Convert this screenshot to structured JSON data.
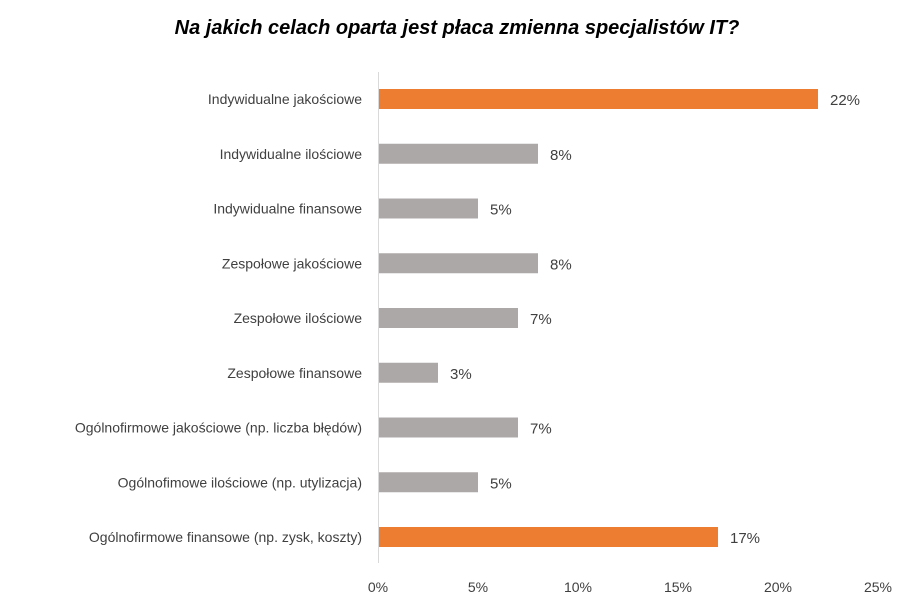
{
  "chart_data": {
    "type": "bar",
    "orientation": "horizontal",
    "title": "Na jakich celach oparta jest płaca zmienna specjalistów IT?",
    "categories": [
      "Indywidualne jakościowe",
      "Indywidualne ilościowe",
      "Indywidualne finansowe",
      "Zespołowe jakościowe",
      "Zespołowe ilościowe",
      "Zespołowe finansowe",
      "Ogólnofirmowe jakościowe (np. liczba błędów)",
      "Ogólnofimowe ilościowe (np. utylizacja)",
      "Ogólnofirmowe finansowe (np. zysk, koszty)"
    ],
    "values": [
      22,
      8,
      5,
      8,
      7,
      3,
      7,
      5,
      17
    ],
    "value_labels": [
      "22%",
      "8%",
      "5%",
      "8%",
      "7%",
      "3%",
      "7%",
      "5%",
      "17%"
    ],
    "highlight": [
      true,
      false,
      false,
      false,
      false,
      false,
      false,
      false,
      true
    ],
    "xlim": [
      0,
      25
    ],
    "xticks": [
      0,
      5,
      10,
      15,
      20,
      25
    ],
    "xtick_labels": [
      "0%",
      "5%",
      "10%",
      "15%",
      "20%",
      "25%"
    ],
    "xlabel": "",
    "ylabel": "",
    "grid": false,
    "colors": {
      "highlight": "#ED7D31",
      "default": "#ADA8A8",
      "axis": "#D9D9D9",
      "text": "#404040"
    }
  }
}
